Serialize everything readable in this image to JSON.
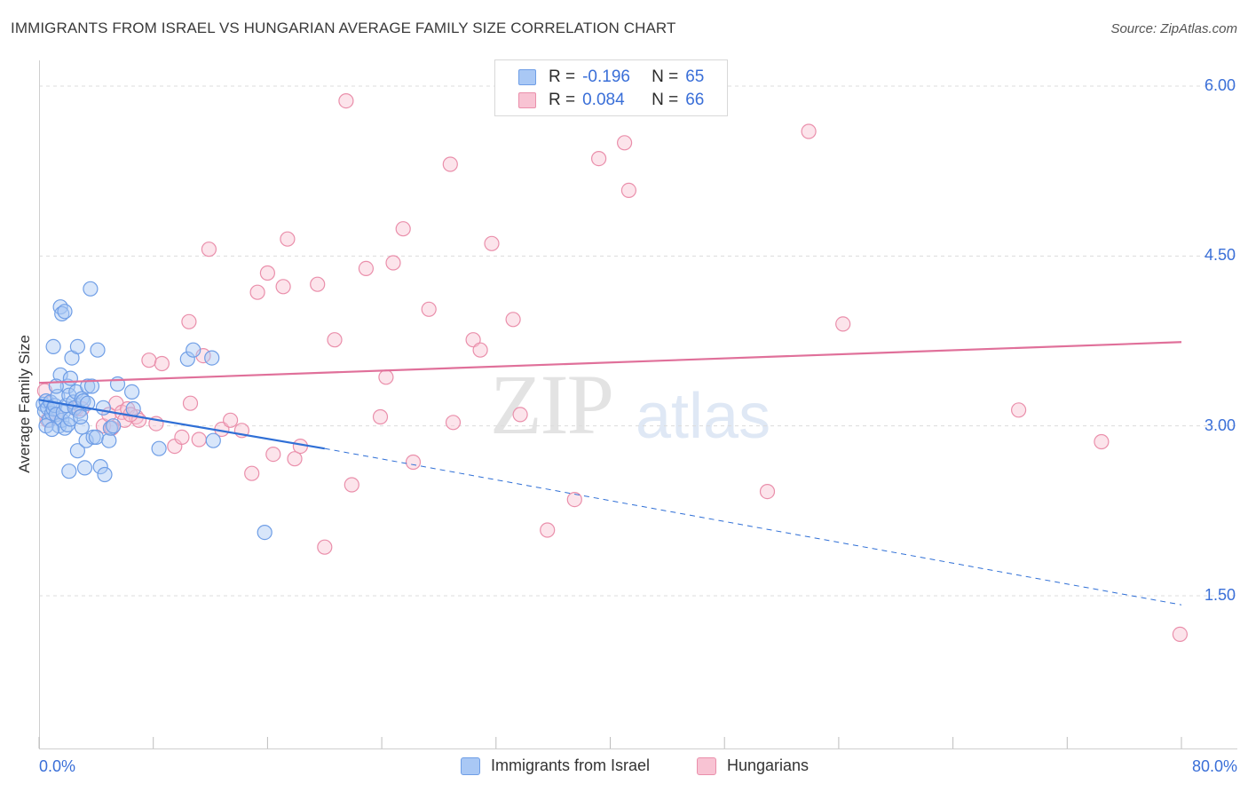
{
  "title": "IMMIGRANTS FROM ISRAEL VS HUNGARIAN AVERAGE FAMILY SIZE CORRELATION CHART",
  "source": "Source: ZipAtlas.com",
  "legend": {
    "r_label": "R =",
    "n_label": "N =",
    "rows": [
      {
        "r": "-0.196",
        "n": "65",
        "color": "#a9c8f5",
        "border": "#6f9ee6"
      },
      {
        "r": "0.084",
        "n": "66",
        "color": "#f8c3d3",
        "border": "#ea8fab"
      }
    ]
  },
  "watermark": {
    "zip": "ZIP",
    "atlas": "atlas"
  },
  "chart_data": {
    "type": "scatter",
    "xlabel": "",
    "ylabel": "Average Family Size",
    "xlim": [
      0,
      80
    ],
    "ylim": [
      0.0,
      6.15
    ],
    "x_tick_labels": [
      "0.0%",
      "80.0%"
    ],
    "y_ticks": [
      1.5,
      3.0,
      4.5,
      6.0
    ],
    "y_tick_labels": [
      "1.50",
      "3.00",
      "4.50",
      "6.00"
    ],
    "grid": true,
    "legend_position": "bottom",
    "series": [
      {
        "name": "Immigrants from Israel",
        "color": "#6f9ee6",
        "fill": "#a9c8f5",
        "trend": {
          "x0": 0,
          "y0": 3.23,
          "x1": 20.0,
          "y1": 2.8,
          "x_dash_end": 80,
          "y_dash_end": 1.42
        },
        "points": [
          [
            0.3,
            3.19
          ],
          [
            0.4,
            3.13
          ],
          [
            0.5,
            3.22
          ],
          [
            0.6,
            3.16
          ],
          [
            0.7,
            3.05
          ],
          [
            0.8,
            3.21
          ],
          [
            0.9,
            3.11
          ],
          [
            1.0,
            3.15
          ],
          [
            1.0,
            3.7
          ],
          [
            1.1,
            3.18
          ],
          [
            1.2,
            3.1
          ],
          [
            1.3,
            3.26
          ],
          [
            1.4,
            3.0
          ],
          [
            1.5,
            3.45
          ],
          [
            1.5,
            4.05
          ],
          [
            1.6,
            3.05
          ],
          [
            1.6,
            3.99
          ],
          [
            1.7,
            3.12
          ],
          [
            1.8,
            4.01
          ],
          [
            1.8,
            2.98
          ],
          [
            1.9,
            3.18
          ],
          [
            2.0,
            3.35
          ],
          [
            2.0,
            3.01
          ],
          [
            2.1,
            2.6
          ],
          [
            2.1,
            3.27
          ],
          [
            2.2,
            3.42
          ],
          [
            2.2,
            3.06
          ],
          [
            2.3,
            3.6
          ],
          [
            2.4,
            3.21
          ],
          [
            2.5,
            3.16
          ],
          [
            2.6,
            3.3
          ],
          [
            2.7,
            2.78
          ],
          [
            2.7,
            3.7
          ],
          [
            2.8,
            3.13
          ],
          [
            3.0,
            3.24
          ],
          [
            3.0,
            2.99
          ],
          [
            3.1,
            3.22
          ],
          [
            3.2,
            2.63
          ],
          [
            3.3,
            2.87
          ],
          [
            3.4,
            3.35
          ],
          [
            3.4,
            3.2
          ],
          [
            3.6,
            4.21
          ],
          [
            3.7,
            3.35
          ],
          [
            3.8,
            2.9
          ],
          [
            4.0,
            2.9
          ],
          [
            4.1,
            3.67
          ],
          [
            4.3,
            2.64
          ],
          [
            4.5,
            3.16
          ],
          [
            4.6,
            2.57
          ],
          [
            4.9,
            2.87
          ],
          [
            5.0,
            2.98
          ],
          [
            5.2,
            3.0
          ],
          [
            5.5,
            3.37
          ],
          [
            6.5,
            3.3
          ],
          [
            6.6,
            3.15
          ],
          [
            8.4,
            2.8
          ],
          [
            10.4,
            3.59
          ],
          [
            10.8,
            3.67
          ],
          [
            12.1,
            3.6
          ],
          [
            12.2,
            2.87
          ],
          [
            15.8,
            2.06
          ],
          [
            0.5,
            3.0
          ],
          [
            1.2,
            3.35
          ],
          [
            2.9,
            3.08
          ],
          [
            0.9,
            2.97
          ]
        ]
      },
      {
        "name": "Hungarians",
        "color": "#ea8fab",
        "fill": "#f8c3d3",
        "trend": {
          "x0": 0,
          "y0": 3.38,
          "x1": 80,
          "y1": 3.74
        },
        "points": [
          [
            0.4,
            3.31
          ],
          [
            0.6,
            3.05
          ],
          [
            1.2,
            3.1
          ],
          [
            2.6,
            3.15
          ],
          [
            4.5,
            3.0
          ],
          [
            4.9,
            3.1
          ],
          [
            5.1,
            2.98
          ],
          [
            5.4,
            3.2
          ],
          [
            5.8,
            3.12
          ],
          [
            6.0,
            3.05
          ],
          [
            6.2,
            3.15
          ],
          [
            6.8,
            3.08
          ],
          [
            7.7,
            3.58
          ],
          [
            8.2,
            3.02
          ],
          [
            8.6,
            3.55
          ],
          [
            9.5,
            2.82
          ],
          [
            10.0,
            2.9
          ],
          [
            10.5,
            3.92
          ],
          [
            10.6,
            3.2
          ],
          [
            11.2,
            2.88
          ],
          [
            11.5,
            3.62
          ],
          [
            11.9,
            4.56
          ],
          [
            12.8,
            2.97
          ],
          [
            13.4,
            3.05
          ],
          [
            14.2,
            2.96
          ],
          [
            14.9,
            2.58
          ],
          [
            15.3,
            4.18
          ],
          [
            16.0,
            4.35
          ],
          [
            16.4,
            2.75
          ],
          [
            17.1,
            4.23
          ],
          [
            17.4,
            4.65
          ],
          [
            17.9,
            2.71
          ],
          [
            18.3,
            2.82
          ],
          [
            19.5,
            4.25
          ],
          [
            20.0,
            1.93
          ],
          [
            20.7,
            3.76
          ],
          [
            21.5,
            5.87
          ],
          [
            21.9,
            2.48
          ],
          [
            22.9,
            4.39
          ],
          [
            23.9,
            3.08
          ],
          [
            24.3,
            3.43
          ],
          [
            24.8,
            4.44
          ],
          [
            25.5,
            4.74
          ],
          [
            26.2,
            2.68
          ],
          [
            27.3,
            4.03
          ],
          [
            28.8,
            5.31
          ],
          [
            29.0,
            3.03
          ],
          [
            30.4,
            3.76
          ],
          [
            30.9,
            3.67
          ],
          [
            31.7,
            4.61
          ],
          [
            33.2,
            3.94
          ],
          [
            33.7,
            3.1
          ],
          [
            35.6,
            2.08
          ],
          [
            37.5,
            2.35
          ],
          [
            39.2,
            5.36
          ],
          [
            41.0,
            5.5
          ],
          [
            41.3,
            5.08
          ],
          [
            51.0,
            2.42
          ],
          [
            53.9,
            5.6
          ],
          [
            56.3,
            3.9
          ],
          [
            68.6,
            3.14
          ],
          [
            74.4,
            2.86
          ],
          [
            79.9,
            1.16
          ],
          [
            7.0,
            3.05
          ],
          [
            3.0,
            3.15
          ],
          [
            6.4,
            3.1
          ]
        ]
      }
    ]
  }
}
